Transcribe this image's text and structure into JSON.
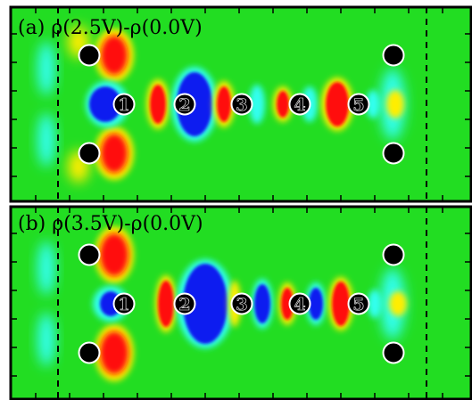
{
  "panels": [
    {
      "id": "a",
      "label": "(a) ρ(2.5V)-ρ(0.0V)",
      "atoms": [
        "1",
        "2",
        "3",
        "4",
        "5"
      ]
    },
    {
      "id": "b",
      "label": "(b) ρ(3.5V)-ρ(0.0V)",
      "atoms": [
        "1",
        "2",
        "3",
        "4",
        "5"
      ]
    }
  ],
  "colors": {
    "background": "#22dd22",
    "positive_strong": "#ff1010",
    "positive_weak": "#ffee00",
    "negative_strong": "#0a1cf0",
    "negative_weak": "#33ffee",
    "marker": "#000000",
    "atom_fill": "#ffffff"
  }
}
